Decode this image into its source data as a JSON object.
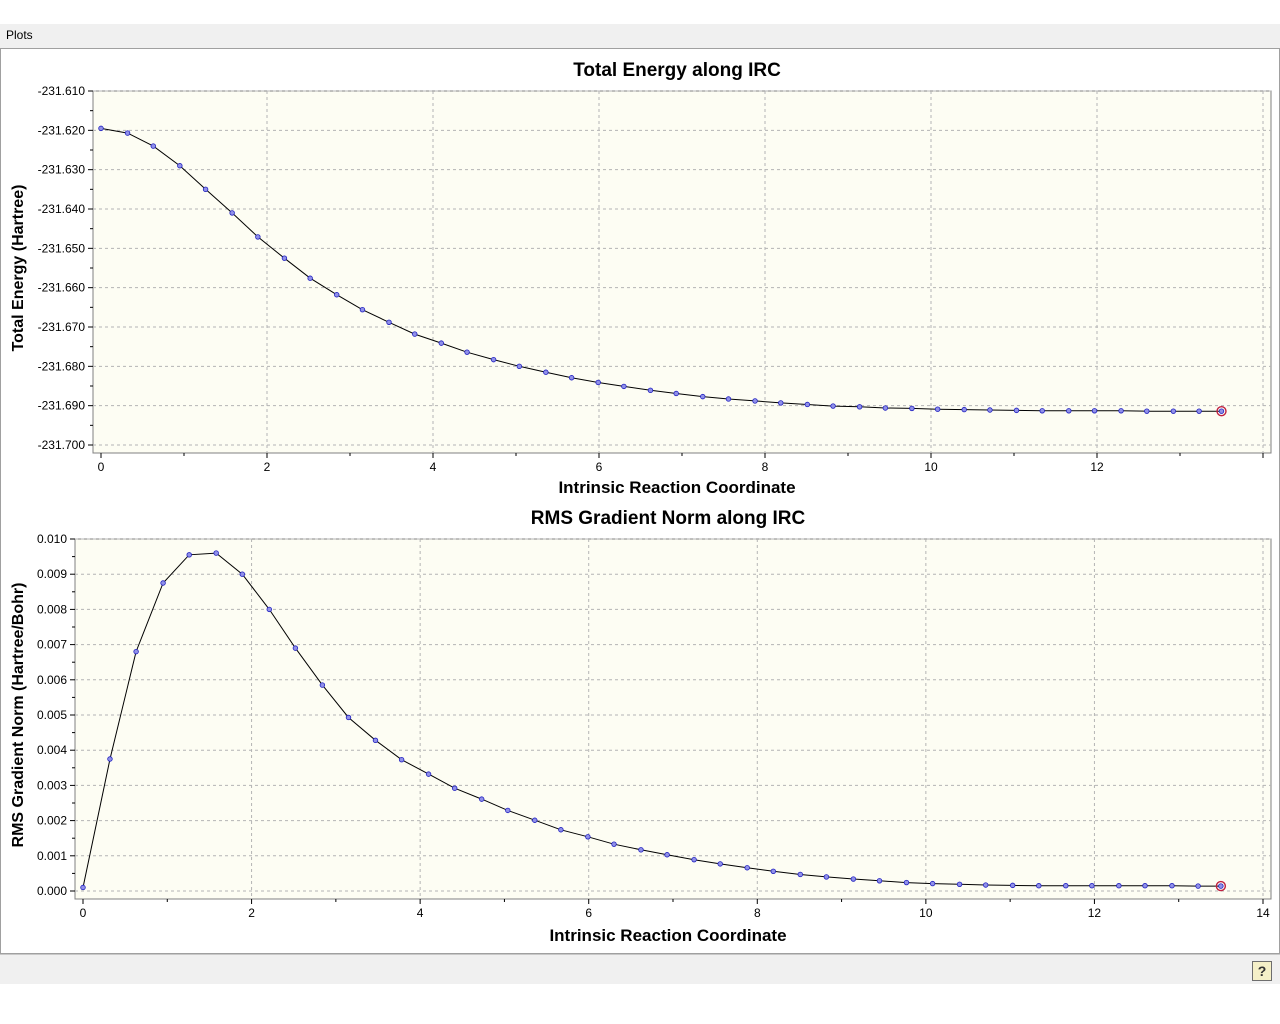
{
  "window": {
    "title": "Plots"
  },
  "help_button": {
    "label": "?"
  },
  "colors": {
    "plot_bg": "#fdfdf3",
    "line": "#000000",
    "marker": "#2020c0",
    "final_marker": "#c02040",
    "grid": "#b4b4b4"
  },
  "chart_data": [
    {
      "type": "line",
      "title": "Total Energy along IRC",
      "xlabel": "Intrinsic Reaction Coordinate",
      "ylabel": "Total Energy (Hartree)",
      "xlim": [
        0,
        14
      ],
      "ylim": [
        -231.7,
        -231.61
      ],
      "xticks": [
        0,
        2,
        4,
        6,
        8,
        10,
        12,
        14
      ],
      "xtick_labels": [
        "0",
        "2",
        "4",
        "6",
        "8",
        "10",
        "12",
        ""
      ],
      "yticks": [
        -231.61,
        -231.62,
        -231.63,
        -231.64,
        -231.65,
        -231.66,
        -231.67,
        -231.68,
        -231.69,
        -231.7
      ],
      "ytick_labels": [
        "-231.610",
        "-231.620",
        "-231.630",
        "-231.640",
        "-231.650",
        "-231.660",
        "-231.670",
        "-231.680",
        "-231.690",
        "-231.700"
      ],
      "grid": true,
      "x": [
        0,
        0.32,
        0.63,
        0.95,
        1.26,
        1.58,
        1.89,
        2.21,
        2.52,
        2.84,
        3.15,
        3.47,
        3.78,
        4.1,
        4.41,
        4.73,
        5.04,
        5.36,
        5.67,
        5.99,
        6.3,
        6.62,
        6.93,
        7.25,
        7.56,
        7.88,
        8.19,
        8.51,
        8.82,
        9.14,
        9.45,
        9.77,
        10.08,
        10.4,
        10.71,
        11.03,
        11.34,
        11.66,
        11.97,
        12.29,
        12.6,
        12.92,
        13.23,
        13.5
      ],
      "y": [
        -231.6195,
        -231.6207,
        -231.624,
        -231.629,
        -231.635,
        -231.641,
        -231.6471,
        -231.6525,
        -231.6576,
        -231.6618,
        -231.6656,
        -231.6688,
        -231.6718,
        -231.6741,
        -231.6764,
        -231.6783,
        -231.68,
        -231.6815,
        -231.6829,
        -231.6841,
        -231.6851,
        -231.6861,
        -231.6869,
        -231.6877,
        -231.6883,
        -231.6888,
        -231.6893,
        -231.6897,
        -231.6901,
        -231.6903,
        -231.6906,
        -231.6907,
        -231.6909,
        -231.691,
        -231.6911,
        -231.6912,
        -231.6913,
        -231.6913,
        -231.6913,
        -231.6913,
        -231.6914,
        -231.6914,
        -231.6914,
        -231.6914
      ]
    },
    {
      "type": "line",
      "title": "RMS Gradient Norm along IRC",
      "xlabel": "Intrinsic Reaction Coordinate",
      "ylabel": "RMS Gradient Norm (Hartree/Bohr)",
      "xlim": [
        0,
        14
      ],
      "ylim": [
        0,
        0.01
      ],
      "xticks": [
        0,
        2,
        4,
        6,
        8,
        10,
        12,
        14
      ],
      "xtick_labels": [
        "0",
        "2",
        "4",
        "6",
        "8",
        "10",
        "12",
        "14"
      ],
      "yticks": [
        0,
        0.001,
        0.002,
        0.003,
        0.004,
        0.005,
        0.006,
        0.007,
        0.008,
        0.009,
        0.01
      ],
      "ytick_labels": [
        "0.000",
        "0.001",
        "0.002",
        "0.003",
        "0.004",
        "0.005",
        "0.006",
        "0.007",
        "0.008",
        "0.009",
        "0.010"
      ],
      "grid": true,
      "x": [
        0,
        0.32,
        0.63,
        0.95,
        1.26,
        1.58,
        1.89,
        2.21,
        2.52,
        2.84,
        3.15,
        3.47,
        3.78,
        4.1,
        4.41,
        4.73,
        5.04,
        5.36,
        5.67,
        5.99,
        6.3,
        6.62,
        6.93,
        7.25,
        7.56,
        7.88,
        8.19,
        8.51,
        8.82,
        9.14,
        9.45,
        9.77,
        10.08,
        10.4,
        10.71,
        11.03,
        11.34,
        11.66,
        11.97,
        12.29,
        12.6,
        12.92,
        13.23,
        13.5
      ],
      "y": [
        0.0001,
        0.00375,
        0.0068,
        0.00875,
        0.00955,
        0.0096,
        0.009,
        0.008,
        0.0069,
        0.00585,
        0.00493,
        0.00428,
        0.00373,
        0.00332,
        0.00292,
        0.00261,
        0.00229,
        0.00201,
        0.00174,
        0.00154,
        0.00133,
        0.00117,
        0.00103,
        0.00089,
        0.00077,
        0.00066,
        0.00056,
        0.00047,
        0.0004,
        0.00034,
        0.00029,
        0.00024,
        0.00021,
        0.00019,
        0.00017,
        0.00016,
        0.00015,
        0.00015,
        0.00015,
        0.00015,
        0.00015,
        0.00015,
        0.00014,
        0.00014
      ]
    }
  ]
}
